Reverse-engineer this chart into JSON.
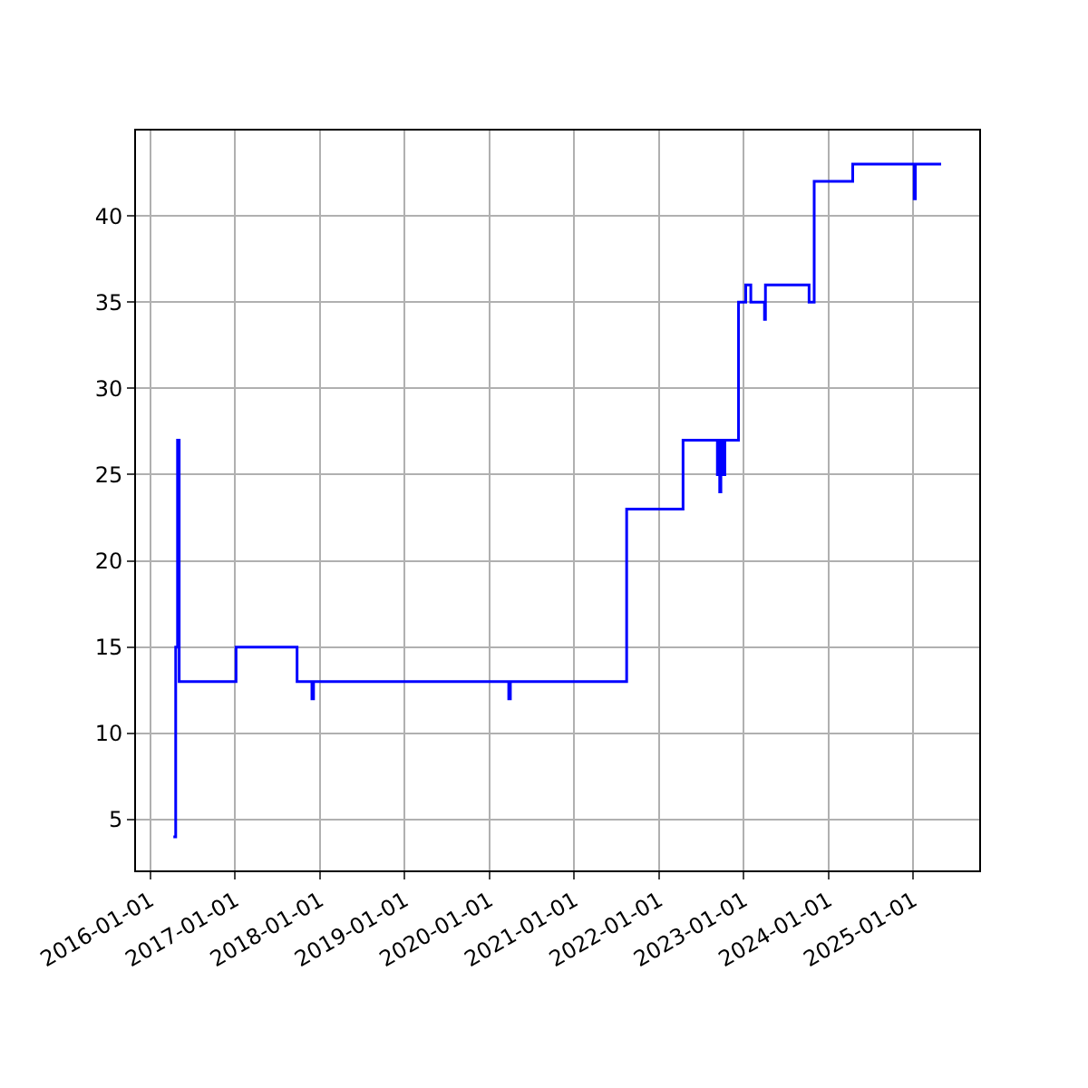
{
  "chart_data": {
    "type": "step",
    "x": [
      "2016-04-10",
      "2016-04-20",
      "2016-04-28",
      "2016-05-05",
      "2017-01-05",
      "2017-09-25",
      "2017-11-28",
      "2017-12-05",
      "2020-03-25",
      "2020-04-01",
      "2021-08-15",
      "2022-04-15",
      "2022-09-10",
      "2022-09-15",
      "2022-09-20",
      "2022-09-25",
      "2022-10-05",
      "2022-10-12",
      "2022-12-10",
      "2023-01-10",
      "2023-02-01",
      "2023-04-01",
      "2023-04-05",
      "2023-10-10",
      "2023-11-01",
      "2024-04-15",
      "2025-01-05",
      "2025-01-10",
      "2025-05-01"
    ],
    "series": [
      {
        "color": "#0000ff",
        "values": [
          4,
          15,
          27,
          13,
          15,
          13,
          12,
          13,
          12,
          13,
          23,
          27,
          25,
          27,
          24,
          27,
          25,
          27,
          35,
          36,
          35,
          34,
          36,
          35,
          42,
          43,
          41,
          43,
          43
        ]
      }
    ],
    "xlim": [
      "2015-11-01",
      "2025-10-12"
    ],
    "xticks": [
      "2016-01-01",
      "2017-01-01",
      "2018-01-01",
      "2019-01-01",
      "2020-01-01",
      "2021-01-01",
      "2022-01-01",
      "2023-01-01",
      "2024-01-01",
      "2025-01-01"
    ],
    "ylim": [
      2.05,
      44.95
    ],
    "yticks": [
      5,
      10,
      15,
      20,
      25,
      30,
      35,
      40
    ],
    "grid": true
  }
}
